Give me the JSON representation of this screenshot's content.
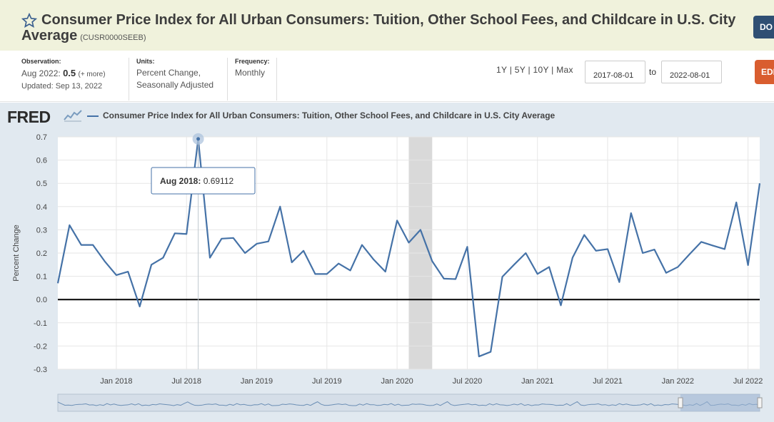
{
  "header": {
    "title": "Consumer Price Index for All Urban Consumers: Tuition, Other School Fees, and Childcare in U.S. City Average",
    "series_id": "(CUSR0000SEEB)",
    "download_label": "DO"
  },
  "meta": {
    "observation_label": "Observation:",
    "observation_date": "Aug 2022:",
    "observation_value": "0.5",
    "observation_more": "(+ more)",
    "updated": "Updated: Sep 13, 2022",
    "units_label": "Units:",
    "units_value": "Percent Change, Seasonally Adjusted",
    "frequency_label": "Frequency:",
    "frequency_value": "Monthly"
  },
  "range": {
    "links": "1Y | 5Y | 10Y | Max",
    "start": "2017-08-01",
    "to": "to",
    "end": "2022-08-01",
    "edit_label": "EDI"
  },
  "brand": {
    "logo": "FRED"
  },
  "colors": {
    "line": "#4572a7",
    "recession": "#d9d9d9",
    "plot_bg": "#ffffff",
    "chart_bg": "#e1e9f0"
  },
  "chart_data": {
    "type": "line",
    "title": "",
    "legend": [
      "Consumer Price Index for All Urban Consumers: Tuition, Other School Fees, and Childcare in U.S. City Average"
    ],
    "ylabel": "Percent Change",
    "xlabel": "",
    "ylim": [
      -0.3,
      0.7
    ],
    "yticks": [
      "0.7",
      "0.6",
      "0.5",
      "0.4",
      "0.3",
      "0.2",
      "0.1",
      "0.0",
      "-0.1",
      "-0.2",
      "-0.3"
    ],
    "xticks": [
      "Jan 2018",
      "Jul 2018",
      "Jan 2019",
      "Jul 2019",
      "Jan 2020",
      "Jul 2020",
      "Jan 2021",
      "Jul 2021",
      "Jan 2022",
      "Jul 2022"
    ],
    "recession": [
      "2020-02",
      "2020-04"
    ],
    "tooltip": {
      "date": "Aug 2018:",
      "value": "0.69112"
    },
    "series": [
      {
        "name": "Consumer Price Index for All Urban Consumers: Tuition, Other School Fees, and Childcare in U.S. City Average",
        "x": [
          "2017-08",
          "2017-09",
          "2017-10",
          "2017-11",
          "2017-12",
          "2018-01",
          "2018-02",
          "2018-03",
          "2018-04",
          "2018-05",
          "2018-06",
          "2018-07",
          "2018-08",
          "2018-09",
          "2018-10",
          "2018-11",
          "2018-12",
          "2019-01",
          "2019-02",
          "2019-03",
          "2019-04",
          "2019-05",
          "2019-06",
          "2019-07",
          "2019-08",
          "2019-09",
          "2019-10",
          "2019-11",
          "2019-12",
          "2020-01",
          "2020-02",
          "2020-03",
          "2020-04",
          "2020-05",
          "2020-06",
          "2020-07",
          "2020-08",
          "2020-09",
          "2020-10",
          "2020-11",
          "2020-12",
          "2021-01",
          "2021-02",
          "2021-03",
          "2021-04",
          "2021-05",
          "2021-06",
          "2021-07",
          "2021-08",
          "2021-09",
          "2021-10",
          "2021-11",
          "2021-12",
          "2022-01",
          "2022-02",
          "2022-03",
          "2022-04",
          "2022-05",
          "2022-06",
          "2022-07",
          "2022-08"
        ],
        "values": [
          0.07,
          0.32,
          0.235,
          0.235,
          0.165,
          0.105,
          0.12,
          -0.03,
          0.15,
          0.18,
          0.285,
          0.282,
          0.691,
          0.18,
          0.262,
          0.265,
          0.2,
          0.24,
          0.25,
          0.4,
          0.16,
          0.21,
          0.11,
          0.11,
          0.155,
          0.125,
          0.235,
          0.172,
          0.12,
          0.34,
          0.245,
          0.3,
          0.165,
          0.09,
          0.088,
          0.227,
          -0.245,
          -0.225,
          0.098,
          0.15,
          0.2,
          0.11,
          0.14,
          -0.025,
          0.18,
          0.278,
          0.21,
          0.217,
          0.075,
          0.372,
          0.2,
          0.215,
          0.115,
          0.14,
          0.195,
          0.248,
          0.232,
          0.217,
          0.418,
          0.148,
          0.5
        ]
      }
    ]
  }
}
